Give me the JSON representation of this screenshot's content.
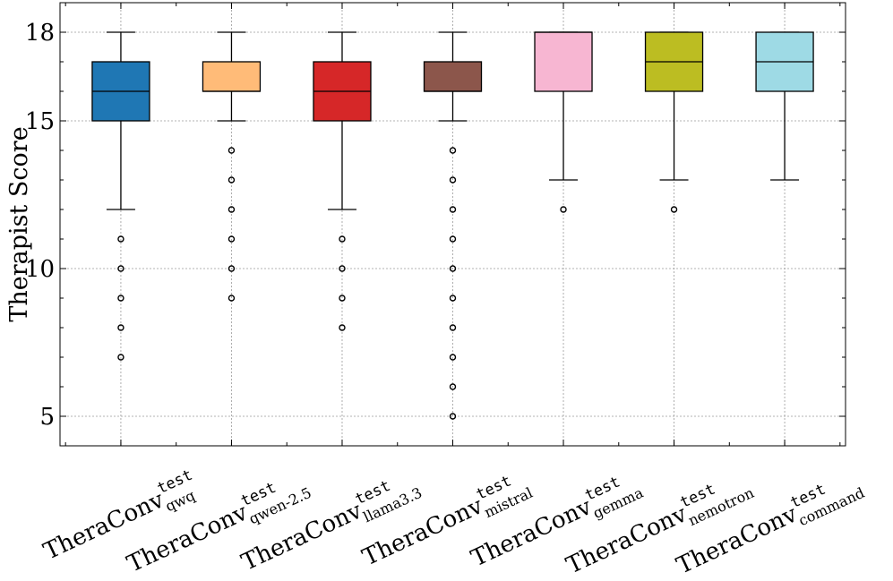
{
  "chart_data": {
    "type": "box",
    "ylabel": "Therapist Score",
    "ylim": [
      4,
      19
    ],
    "yticks": [
      5,
      10,
      15,
      18
    ],
    "grid": true,
    "categories": [
      {
        "main": "TheraConv",
        "sup": "test",
        "sub": "qwq"
      },
      {
        "main": "TheraConv",
        "sup": "test",
        "sub": "qwen-2.5"
      },
      {
        "main": "TheraConv",
        "sup": "test",
        "sub": "llama3.3"
      },
      {
        "main": "TheraConv",
        "sup": "test",
        "sub": "mistral"
      },
      {
        "main": "TheraConv",
        "sup": "test",
        "sub": "gemma"
      },
      {
        "main": "TheraConv",
        "sup": "test",
        "sub": "nemotron"
      },
      {
        "main": "TheraConv",
        "sup": "test",
        "sub": "command"
      }
    ],
    "boxes": [
      {
        "whisker_low": 12,
        "q1": 15,
        "median": 16,
        "q3": 17,
        "whisker_high": 18,
        "outliers": [
          11,
          10,
          9,
          8,
          7
        ],
        "color": "#1f77b4"
      },
      {
        "whisker_low": 15,
        "q1": 16,
        "median": 16,
        "q3": 17,
        "whisker_high": 18,
        "outliers": [
          14,
          13,
          12,
          11,
          10,
          9
        ],
        "color": "#ffbb78"
      },
      {
        "whisker_low": 12,
        "q1": 15,
        "median": 16,
        "q3": 17,
        "whisker_high": 18,
        "outliers": [
          11,
          10,
          9,
          8
        ],
        "color": "#d62728"
      },
      {
        "whisker_low": 15,
        "q1": 16,
        "median": 16,
        "q3": 17,
        "whisker_high": 18,
        "outliers": [
          14,
          13,
          12,
          11,
          10,
          9,
          8,
          7,
          6,
          5
        ],
        "color": "#8c564b"
      },
      {
        "whisker_low": 13,
        "q1": 16,
        "median": 18,
        "q3": 18,
        "whisker_high": 18,
        "outliers": [
          12
        ],
        "color": "#f7b6d2"
      },
      {
        "whisker_low": 13,
        "q1": 16,
        "median": 17,
        "q3": 18,
        "whisker_high": 18,
        "outliers": [
          12
        ],
        "color": "#bcbd22"
      },
      {
        "whisker_low": 13,
        "q1": 16,
        "median": 17,
        "q3": 18,
        "whisker_high": 18,
        "outliers": [],
        "color": "#9edae5"
      }
    ]
  }
}
